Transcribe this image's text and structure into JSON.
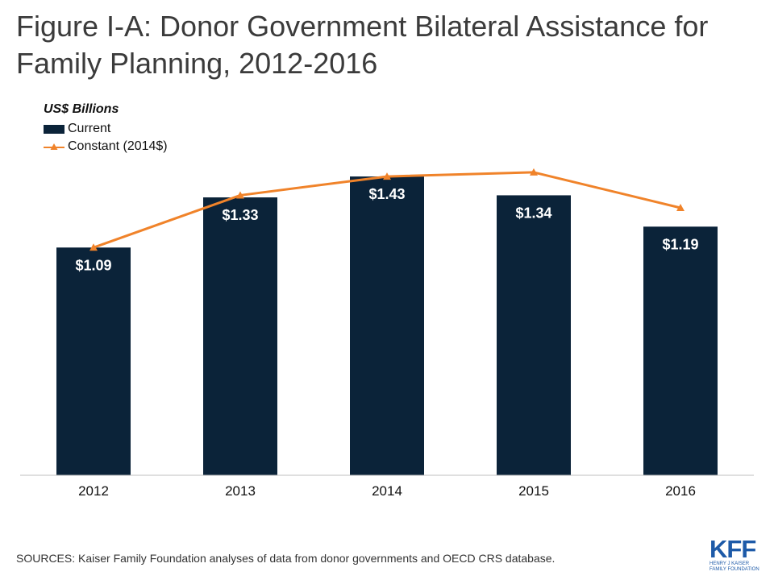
{
  "title": "Figure I-A: Donor Government Bilateral Assistance for Family Planning, 2012-2016",
  "sources": "SOURCES: Kaiser Family Foundation analyses of data from donor governments and OECD CRS database.",
  "logo": {
    "mark": "KFF",
    "line1": "HENRY J KAISER",
    "line2": "FAMILY FOUNDATION"
  },
  "colors": {
    "bar": "#0b2339",
    "line": "#f0832a",
    "axis": "#bfbfbf"
  },
  "chart_data": {
    "type": "bar",
    "ylabel": "US$ Billions",
    "categories": [
      "2012",
      "2013",
      "2014",
      "2015",
      "2016"
    ],
    "ylim": [
      0,
      1.6
    ],
    "grid": false,
    "legend_position": "top-left",
    "series": [
      {
        "name": "Current",
        "type": "bar",
        "values": [
          1.09,
          1.33,
          1.43,
          1.34,
          1.19
        ],
        "labels": [
          "$1.09",
          "$1.33",
          "$1.43",
          "$1.34",
          "$1.19"
        ]
      },
      {
        "name": "Constant (2014$)",
        "type": "line",
        "marker": "triangle",
        "values": [
          1.09,
          1.34,
          1.43,
          1.45,
          1.28
        ]
      }
    ]
  }
}
